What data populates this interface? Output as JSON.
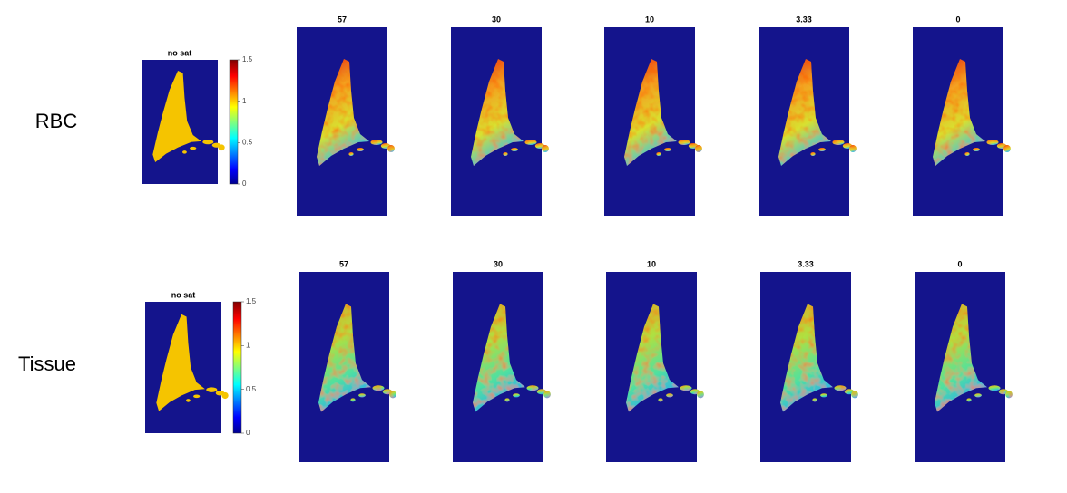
{
  "rows": [
    {
      "label": "RBC",
      "reference": {
        "title": "no sat",
        "colorbar_ticks": [
          0,
          0.5,
          1,
          1.5
        ]
      },
      "panels": [
        {
          "title": "57"
        },
        {
          "title": "30"
        },
        {
          "title": "10"
        },
        {
          "title": "3.33"
        },
        {
          "title": "0"
        }
      ]
    },
    {
      "label": "Tissue",
      "reference": {
        "title": "no sat",
        "colorbar_ticks": [
          0,
          0.5,
          1,
          1.5
        ]
      },
      "panels": [
        {
          "title": "57"
        },
        {
          "title": "30"
        },
        {
          "title": "10"
        },
        {
          "title": "3.33"
        },
        {
          "title": "0"
        }
      ]
    }
  ]
}
